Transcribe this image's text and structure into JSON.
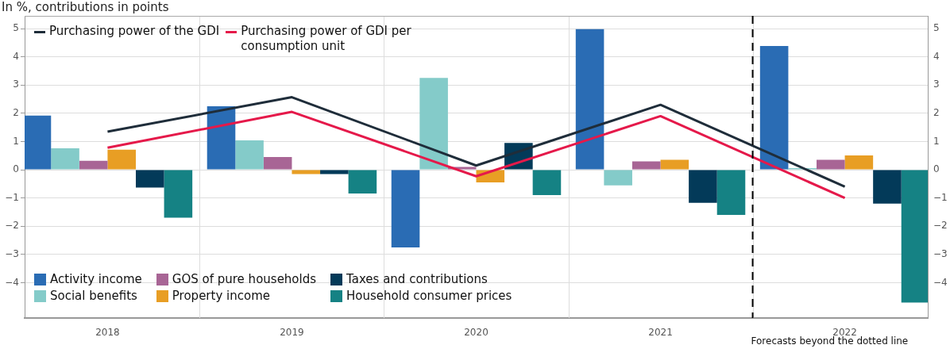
{
  "chart_data": {
    "type": "bar",
    "title": "In %, contributions in points",
    "x": [
      2018,
      2019,
      2020,
      2021,
      2022
    ],
    "xlim": [
      2017.55,
      2022.45
    ],
    "xticks": [
      2018,
      2019,
      2020,
      2021,
      2022
    ],
    "ylim": [
      -5.25,
      5.45
    ],
    "yticks": [
      {
        "value": -4,
        "label": "−4"
      },
      {
        "value": -3,
        "label": "−3"
      },
      {
        "value": -2,
        "label": "−2"
      },
      {
        "value": -1,
        "label": "−1"
      },
      0,
      1,
      2,
      3,
      4,
      5
    ],
    "y2lim": [
      -5.25,
      5.45
    ],
    "y2ticks": [
      {
        "value": -4,
        "label": "−4"
      },
      {
        "value": -3,
        "label": "−3"
      },
      {
        "value": -2,
        "label": "−2"
      },
      {
        "value": -1,
        "label": "−1"
      },
      0,
      1,
      2,
      3,
      4,
      5
    ],
    "grid": true,
    "legend": "left",
    "series": [
      {
        "name": "Activity income",
        "color": "#2a6cb4",
        "values": [
          1.92,
          2.25,
          -2.75,
          4.98,
          4.38
        ]
      },
      {
        "name": "Social benefits",
        "color": "#84cbc9",
        "values": [
          0.76,
          1.04,
          3.25,
          -0.55,
          0.06
        ]
      },
      {
        "name": "GOS of pure households",
        "color": "#a86595",
        "values": [
          0.32,
          0.45,
          0.1,
          0.3,
          0.35
        ]
      },
      {
        "name": "Property income",
        "color": "#e89e24",
        "values": [
          0.71,
          -0.15,
          -0.45,
          0.35,
          0.51
        ]
      },
      {
        "name": "Taxes and contributions",
        "color": "#033a59",
        "values": [
          -0.63,
          -0.15,
          0.95,
          -1.17,
          -1.2
        ]
      },
      {
        "name": "Household consumer prices",
        "color": "#158284",
        "values": [
          -1.7,
          -0.84,
          -0.9,
          -1.6,
          -4.7
        ]
      },
      {
        "type": "line",
        "name": "Purchasing power of the GDI",
        "color": "#1f2d3a",
        "values": [
          1.35,
          2.57,
          0.15,
          2.3,
          -0.6
        ]
      },
      {
        "type": "line",
        "name": "Purchasing power of GDI per consumption unit",
        "color": "#e5194a",
        "values": [
          0.78,
          2.05,
          -0.23,
          1.9,
          -1.0
        ]
      }
    ],
    "ref_lines": [
      {
        "axis": "x",
        "value": 2021.5,
        "label": "Forecasts beyond the dotted line",
        "color": "#000000",
        "line_style": "dashed"
      }
    ]
  }
}
